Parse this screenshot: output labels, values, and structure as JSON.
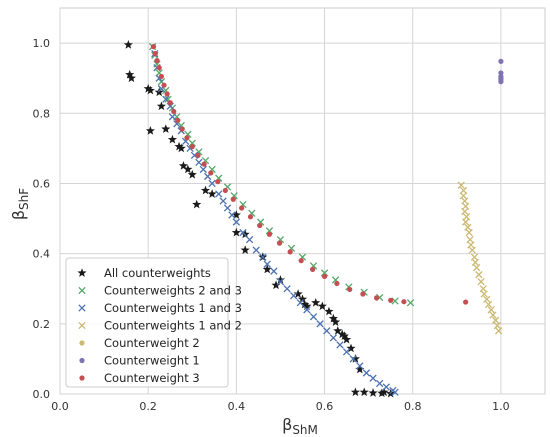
{
  "chart_data": {
    "type": "scatter",
    "xlabel": {
      "main": "β",
      "sub": "ShM"
    },
    "ylabel": {
      "main": "β",
      "sub": "ShF"
    },
    "xlim": [
      0.0,
      1.1
    ],
    "ylim": [
      0.0,
      1.1
    ],
    "xticks": [
      "0.0",
      "0.2",
      "0.4",
      "0.6",
      "0.8",
      "1.0"
    ],
    "yticks": [
      "0.0",
      "0.2",
      "0.4",
      "0.6",
      "0.8",
      "1.0"
    ],
    "grid": true,
    "legend_position": "lower-left",
    "series": [
      {
        "name": "All counterweights",
        "marker": "star",
        "color": "#1a1a1a",
        "points": [
          [
            0.155,
            0.995
          ],
          [
            0.158,
            0.91
          ],
          [
            0.162,
            0.9
          ],
          [
            0.2,
            0.87
          ],
          [
            0.205,
            0.865
          ],
          [
            0.205,
            0.75
          ],
          [
            0.225,
            0.86
          ],
          [
            0.23,
            0.82
          ],
          [
            0.24,
            0.755
          ],
          [
            0.255,
            0.725
          ],
          [
            0.275,
            0.7
          ],
          [
            0.27,
            0.705
          ],
          [
            0.28,
            0.65
          ],
          [
            0.3,
            0.625
          ],
          [
            0.29,
            0.64
          ],
          [
            0.33,
            0.58
          ],
          [
            0.345,
            0.57
          ],
          [
            0.31,
            0.54
          ],
          [
            0.4,
            0.51
          ],
          [
            0.42,
            0.455
          ],
          [
            0.4,
            0.46
          ],
          [
            0.42,
            0.41
          ],
          [
            0.46,
            0.39
          ],
          [
            0.47,
            0.355
          ],
          [
            0.5,
            0.325
          ],
          [
            0.49,
            0.31
          ],
          [
            0.54,
            0.285
          ],
          [
            0.55,
            0.27
          ],
          [
            0.56,
            0.25
          ],
          [
            0.555,
            0.255
          ],
          [
            0.58,
            0.26
          ],
          [
            0.595,
            0.25
          ],
          [
            0.61,
            0.235
          ],
          [
            0.62,
            0.215
          ],
          [
            0.625,
            0.205
          ],
          [
            0.63,
            0.18
          ],
          [
            0.64,
            0.17
          ],
          [
            0.645,
            0.165
          ],
          [
            0.65,
            0.155
          ],
          [
            0.66,
            0.13
          ],
          [
            0.67,
            0.1
          ],
          [
            0.68,
            0.07
          ],
          [
            0.67,
            0.005
          ],
          [
            0.69,
            0.005
          ],
          [
            0.71,
            0.003
          ],
          [
            0.735,
            0.005
          ],
          [
            0.73,
            0.002
          ],
          [
            0.75,
            0.001
          ]
        ]
      },
      {
        "name": "Counterweights 2 and 3",
        "marker": "x",
        "color": "#55a868",
        "points": [
          [
            0.21,
            0.99
          ],
          [
            0.215,
            0.965
          ],
          [
            0.22,
            0.94
          ],
          [
            0.225,
            0.915
          ],
          [
            0.23,
            0.89
          ],
          [
            0.24,
            0.865
          ],
          [
            0.245,
            0.84
          ],
          [
            0.255,
            0.815
          ],
          [
            0.265,
            0.79
          ],
          [
            0.275,
            0.765
          ],
          [
            0.29,
            0.74
          ],
          [
            0.3,
            0.715
          ],
          [
            0.315,
            0.69
          ],
          [
            0.33,
            0.665
          ],
          [
            0.345,
            0.64
          ],
          [
            0.36,
            0.615
          ],
          [
            0.38,
            0.59
          ],
          [
            0.395,
            0.565
          ],
          [
            0.415,
            0.54
          ],
          [
            0.435,
            0.515
          ],
          [
            0.455,
            0.49
          ],
          [
            0.475,
            0.465
          ],
          [
            0.5,
            0.44
          ],
          [
            0.525,
            0.415
          ],
          [
            0.55,
            0.39
          ],
          [
            0.575,
            0.365
          ],
          [
            0.6,
            0.345
          ],
          [
            0.625,
            0.325
          ],
          [
            0.655,
            0.305
          ],
          [
            0.69,
            0.29
          ],
          [
            0.725,
            0.275
          ],
          [
            0.76,
            0.265
          ],
          [
            0.795,
            0.26
          ]
        ]
      },
      {
        "name": "Counterweights 1 and 3",
        "marker": "x",
        "color": "#4c72b0",
        "points": [
          [
            0.215,
            0.97
          ],
          [
            0.22,
            0.93
          ],
          [
            0.225,
            0.9
          ],
          [
            0.23,
            0.87
          ],
          [
            0.24,
            0.84
          ],
          [
            0.25,
            0.82
          ],
          [
            0.255,
            0.79
          ],
          [
            0.265,
            0.77
          ],
          [
            0.275,
            0.75
          ],
          [
            0.285,
            0.72
          ],
          [
            0.295,
            0.7
          ],
          [
            0.305,
            0.68
          ],
          [
            0.315,
            0.66
          ],
          [
            0.325,
            0.64
          ],
          [
            0.335,
            0.62
          ],
          [
            0.345,
            0.6
          ],
          [
            0.36,
            0.57
          ],
          [
            0.37,
            0.55
          ],
          [
            0.38,
            0.53
          ],
          [
            0.39,
            0.51
          ],
          [
            0.4,
            0.49
          ],
          [
            0.415,
            0.46
          ],
          [
            0.43,
            0.44
          ],
          [
            0.445,
            0.41
          ],
          [
            0.46,
            0.39
          ],
          [
            0.47,
            0.37
          ],
          [
            0.485,
            0.35
          ],
          [
            0.5,
            0.32
          ],
          [
            0.515,
            0.3
          ],
          [
            0.53,
            0.28
          ],
          [
            0.545,
            0.26
          ],
          [
            0.56,
            0.24
          ],
          [
            0.575,
            0.22
          ],
          [
            0.59,
            0.2
          ],
          [
            0.605,
            0.18
          ],
          [
            0.62,
            0.16
          ],
          [
            0.635,
            0.14
          ],
          [
            0.65,
            0.12
          ],
          [
            0.665,
            0.1
          ],
          [
            0.68,
            0.08
          ],
          [
            0.695,
            0.06
          ],
          [
            0.71,
            0.045
          ],
          [
            0.725,
            0.03
          ],
          [
            0.74,
            0.02
          ],
          [
            0.755,
            0.01
          ],
          [
            0.76,
            0.005
          ]
        ]
      },
      {
        "name": "Counterweights 1 and 2",
        "marker": "x",
        "color": "#ccb974",
        "points": [
          [
            0.91,
            0.595
          ],
          [
            0.915,
            0.58
          ],
          [
            0.915,
            0.565
          ],
          [
            0.918,
            0.55
          ],
          [
            0.92,
            0.535
          ],
          [
            0.918,
            0.52
          ],
          [
            0.922,
            0.505
          ],
          [
            0.92,
            0.49
          ],
          [
            0.925,
            0.475
          ],
          [
            0.928,
            0.46
          ],
          [
            0.93,
            0.44
          ],
          [
            0.932,
            0.425
          ],
          [
            0.935,
            0.41
          ],
          [
            0.94,
            0.39
          ],
          [
            0.942,
            0.375
          ],
          [
            0.945,
            0.36
          ],
          [
            0.95,
            0.34
          ],
          [
            0.955,
            0.32
          ],
          [
            0.96,
            0.3
          ],
          [
            0.962,
            0.285
          ],
          [
            0.968,
            0.27
          ],
          [
            0.972,
            0.255
          ],
          [
            0.978,
            0.24
          ],
          [
            0.982,
            0.225
          ],
          [
            0.988,
            0.21
          ],
          [
            0.992,
            0.195
          ],
          [
            0.995,
            0.18
          ]
        ]
      },
      {
        "name": "Counterweight 2",
        "marker": "dot",
        "color": "#ccb974",
        "points": []
      },
      {
        "name": "Counterweight 1",
        "marker": "dot",
        "color": "#8172b2",
        "points": [
          [
            1.0,
            0.948
          ],
          [
            1.0,
            0.915
          ],
          [
            1.0,
            0.905
          ],
          [
            1.0,
            0.9
          ],
          [
            1.0,
            0.895
          ],
          [
            1.0,
            0.89
          ]
        ]
      },
      {
        "name": "Counterweight 3",
        "marker": "dot",
        "color": "#c44e52",
        "points": [
          [
            0.212,
            0.99
          ],
          [
            0.216,
            0.97
          ],
          [
            0.22,
            0.95
          ],
          [
            0.225,
            0.93
          ],
          [
            0.23,
            0.905
          ],
          [
            0.236,
            0.88
          ],
          [
            0.243,
            0.855
          ],
          [
            0.25,
            0.83
          ],
          [
            0.258,
            0.805
          ],
          [
            0.267,
            0.78
          ],
          [
            0.277,
            0.755
          ],
          [
            0.288,
            0.73
          ],
          [
            0.3,
            0.705
          ],
          [
            0.313,
            0.68
          ],
          [
            0.327,
            0.655
          ],
          [
            0.342,
            0.63
          ],
          [
            0.358,
            0.605
          ],
          [
            0.375,
            0.58
          ],
          [
            0.393,
            0.555
          ],
          [
            0.412,
            0.53
          ],
          [
            0.432,
            0.505
          ],
          [
            0.453,
            0.48
          ],
          [
            0.475,
            0.455
          ],
          [
            0.498,
            0.43
          ],
          [
            0.522,
            0.405
          ],
          [
            0.547,
            0.38
          ],
          [
            0.573,
            0.355
          ],
          [
            0.6,
            0.335
          ],
          [
            0.628,
            0.315
          ],
          [
            0.657,
            0.298
          ],
          [
            0.687,
            0.285
          ],
          [
            0.718,
            0.274
          ],
          [
            0.75,
            0.267
          ],
          [
            0.78,
            0.263
          ],
          [
            0.92,
            0.262
          ]
        ]
      }
    ]
  }
}
